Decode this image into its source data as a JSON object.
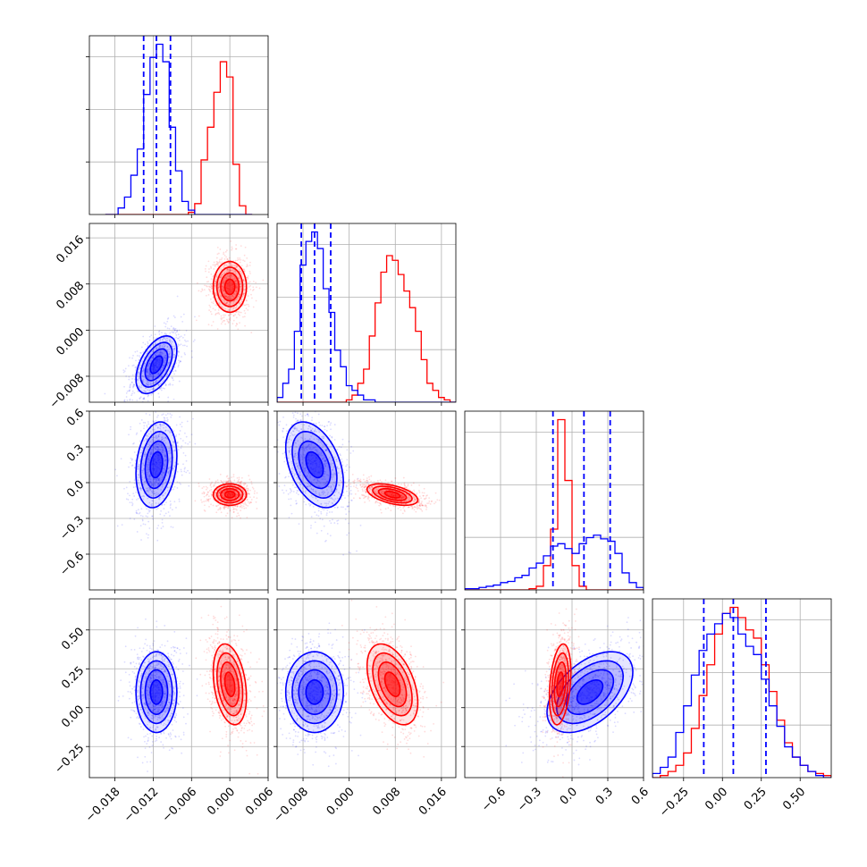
{
  "colors": {
    "blue": "#0000ff",
    "red": "#ff0000",
    "grid": "#b0b0b0",
    "frame": "#000000"
  },
  "chart_data": {
    "type": "corner",
    "title": "",
    "grid": true,
    "legend": "none",
    "parameters": [
      {
        "range": [
          -0.022,
          0.006
        ],
        "ticks": [
          -0.018,
          -0.012,
          -0.006,
          0.0,
          0.006
        ],
        "tick_labels": [
          "−0.018",
          "−0.012",
          "−0.006",
          "0.000",
          "0.006"
        ]
      },
      {
        "range": [
          -0.0125,
          0.0185
        ],
        "ticks": [
          -0.008,
          0.0,
          0.008,
          0.016
        ],
        "tick_labels": [
          "−0.008",
          "0.000",
          "0.008",
          "0.016"
        ]
      },
      {
        "range": [
          -0.9,
          0.6
        ],
        "ticks": [
          -0.6,
          -0.3,
          0.0,
          0.3,
          0.6
        ],
        "tick_labels": [
          "−0.6",
          "−0.3",
          "0.0",
          "0.3",
          "0.6"
        ]
      },
      {
        "range": [
          -0.45,
          0.7
        ],
        "ticks": [
          -0.25,
          0.0,
          0.25,
          0.5
        ],
        "tick_labels": [
          "−0.25",
          "0.00",
          "0.25",
          "0.50"
        ]
      }
    ],
    "series": [
      {
        "color": "blue",
        "means": [
          -0.0115,
          -0.006,
          0.15,
          0.1
        ],
        "sds": [
          0.0016,
          0.0025,
          0.18,
          0.13
        ],
        "quantiles_16_50_84": [
          [
            -0.0135,
            -0.0115,
            -0.0093
          ],
          [
            -0.0083,
            -0.006,
            -0.0032
          ],
          [
            -0.16,
            0.1,
            0.32
          ],
          [
            -0.12,
            0.07,
            0.28
          ]
        ],
        "corr_pairs": {
          "1-0": 0.5,
          "2-0": 0.2,
          "3-0": 0.0,
          "2-1": -0.4,
          "3-1": 0.0,
          "3-2": 0.5
        }
      },
      {
        "color": "red",
        "means": [
          0.0,
          0.0075,
          -0.1,
          0.15
        ],
        "sds": [
          0.0013,
          0.0022,
          0.045,
          0.13
        ],
        "corr_pairs": {
          "1-0": 0.0,
          "2-0": 0.0,
          "3-0": -0.3,
          "2-1": -0.5,
          "3-1": -0.45,
          "3-2": 0.3
        }
      }
    ],
    "marginals": [
      {
        "param": 0,
        "bin_edges": [
          -0.0195,
          -0.0185,
          -0.0175,
          -0.0165,
          -0.0155,
          -0.0145,
          -0.0135,
          -0.0125,
          -0.0115,
          -0.0105,
          -0.0095,
          -0.0085,
          -0.0075,
          -0.0065,
          -0.0055,
          -0.0045,
          -0.0035,
          -0.0025,
          -0.0015,
          -0.0005,
          0.0005,
          0.0015,
          0.0025,
          0.0035
        ],
        "blue": [
          0,
          0,
          3,
          8,
          18,
          30,
          55,
          72,
          78,
          70,
          40,
          20,
          6,
          2,
          0,
          0,
          0,
          0,
          0,
          0,
          0,
          0,
          0
        ],
        "red": [
          0,
          0,
          0,
          0,
          0,
          0,
          0,
          0,
          0,
          0,
          0,
          0,
          0,
          1,
          5,
          25,
          40,
          56,
          70,
          63,
          23,
          4,
          0
        ]
      },
      {
        "param": 1,
        "bin_edges": [
          -0.0125,
          -0.0115,
          -0.0105,
          -0.0095,
          -0.0085,
          -0.0075,
          -0.0065,
          -0.0055,
          -0.0045,
          -0.0035,
          -0.0025,
          -0.0015,
          -0.0005,
          0.0005,
          0.0015,
          0.0025,
          0.0035,
          0.0045,
          0.0055,
          0.0065,
          0.0075,
          0.0085,
          0.0095,
          0.0105,
          0.0115,
          0.0125,
          0.0135,
          0.0145,
          0.0155,
          0.0165,
          0.0175,
          0.0185
        ],
        "blue": [
          2,
          8,
          14,
          30,
          58,
          68,
          72,
          65,
          48,
          38,
          22,
          15,
          7,
          5,
          3,
          1,
          1,
          0,
          0,
          0,
          0,
          0,
          0,
          0,
          0,
          0,
          0,
          0,
          0,
          0,
          0
        ],
        "red": [
          0,
          0,
          0,
          0,
          0,
          0,
          0,
          0,
          0,
          0,
          0,
          0,
          1,
          3,
          8,
          14,
          28,
          42,
          55,
          62,
          60,
          54,
          47,
          40,
          30,
          18,
          8,
          5,
          2,
          1,
          0
        ]
      },
      {
        "param": 2,
        "bin_edges": [
          -0.9,
          -0.84,
          -0.78,
          -0.72,
          -0.66,
          -0.6,
          -0.54,
          -0.48,
          -0.42,
          -0.36,
          -0.3,
          -0.24,
          -0.18,
          -0.12,
          -0.06,
          0.0,
          0.06,
          0.12,
          0.18,
          0.24,
          0.3,
          0.36,
          0.42,
          0.48,
          0.54,
          0.6
        ],
        "blue": [
          1,
          1,
          2,
          3,
          4,
          6,
          7,
          10,
          12,
          18,
          22,
          28,
          36,
          38,
          34,
          30,
          38,
          43,
          45,
          42,
          40,
          30,
          14,
          6,
          2
        ],
        "red": [
          0,
          0,
          0,
          0,
          0,
          0,
          0,
          0,
          0,
          1,
          3,
          20,
          50,
          140,
          90,
          20,
          3,
          0,
          0,
          0,
          0,
          0,
          0,
          0,
          0
        ]
      },
      {
        "param": 3,
        "bin_edges": [
          -0.45,
          -0.4,
          -0.35,
          -0.3,
          -0.25,
          -0.2,
          -0.15,
          -0.1,
          -0.05,
          0.0,
          0.05,
          0.1,
          0.15,
          0.2,
          0.25,
          0.3,
          0.35,
          0.4,
          0.45,
          0.5,
          0.55,
          0.6,
          0.65,
          0.7
        ],
        "blue": [
          2,
          5,
          10,
          22,
          35,
          50,
          62,
          70,
          75,
          80,
          78,
          70,
          64,
          60,
          48,
          35,
          25,
          15,
          10,
          6,
          3,
          1,
          0
        ],
        "red": [
          0,
          1,
          3,
          6,
          12,
          24,
          40,
          55,
          70,
          80,
          83,
          78,
          72,
          68,
          55,
          42,
          28,
          17,
          10,
          6,
          3,
          2,
          1
        ]
      }
    ],
    "axes": [
      {
        "row": 0,
        "col": 0,
        "kind": "hist"
      },
      {
        "row": 1,
        "col": 0,
        "kind": "2d"
      },
      {
        "row": 1,
        "col": 1,
        "kind": "hist"
      },
      {
        "row": 2,
        "col": 0,
        "kind": "2d"
      },
      {
        "row": 2,
        "col": 1,
        "kind": "2d"
      },
      {
        "row": 2,
        "col": 2,
        "kind": "hist"
      },
      {
        "row": 3,
        "col": 0,
        "kind": "2d"
      },
      {
        "row": 3,
        "col": 1,
        "kind": "2d"
      },
      {
        "row": 3,
        "col": 2,
        "kind": "2d"
      },
      {
        "row": 3,
        "col": 3,
        "kind": "hist"
      }
    ]
  }
}
